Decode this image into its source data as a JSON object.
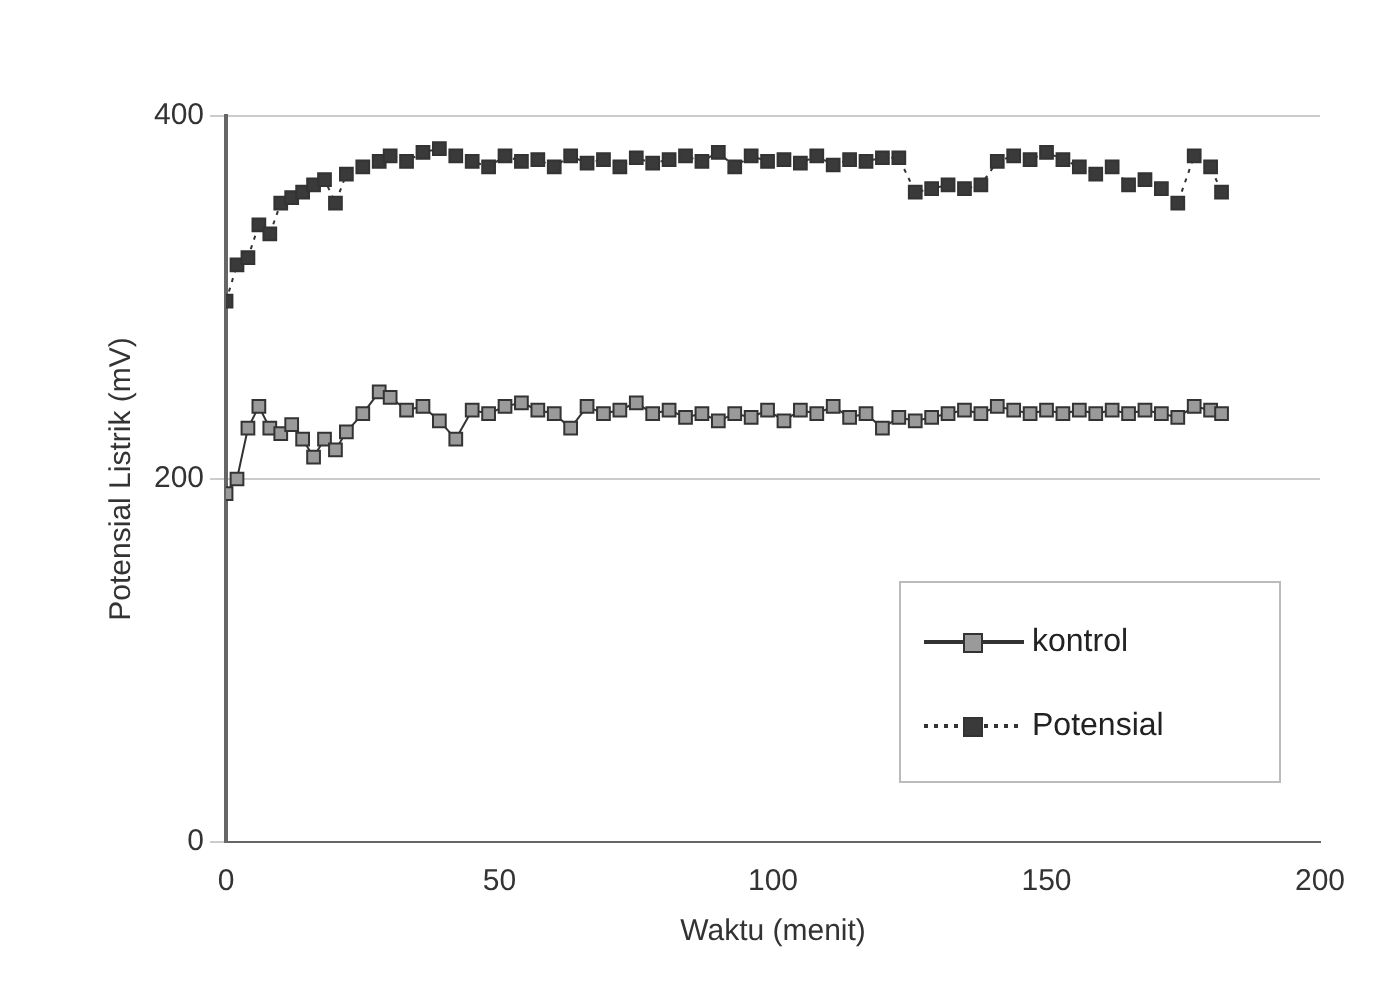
{
  "chart_data": {
    "type": "line",
    "xlabel": "Waktu (menit)",
    "ylabel": "Potensial Listrik (mV)",
    "xlim": [
      0,
      200
    ],
    "xticks": [
      0,
      50,
      100,
      150,
      200
    ],
    "ylim": [
      0,
      400
    ],
    "yticks": [
      0,
      200,
      400
    ],
    "grid": "y",
    "legend": "bottom right",
    "marker": "square",
    "x": [
      0,
      2,
      4,
      6,
      8,
      10,
      12,
      14,
      16,
      18,
      20,
      22,
      25,
      28,
      30,
      33,
      36,
      39,
      42,
      45,
      48,
      51,
      54,
      57,
      60,
      63,
      66,
      69,
      72,
      75,
      78,
      81,
      84,
      87,
      90,
      93,
      96,
      99,
      102,
      105,
      108,
      111,
      114,
      117,
      120,
      123,
      126,
      129,
      132,
      135,
      138,
      141,
      144,
      147,
      150,
      153,
      156,
      159,
      162,
      165,
      168,
      171,
      174,
      177,
      180,
      182
    ],
    "series": [
      {
        "name": "kontrol",
        "color": "#9a9a9a",
        "line_style": "solid",
        "values": [
          192,
          200,
          228,
          240,
          228,
          225,
          230,
          222,
          212,
          222,
          216,
          226,
          236,
          248,
          245,
          238,
          240,
          232,
          222,
          238,
          236,
          240,
          242,
          238,
          236,
          228,
          240,
          236,
          238,
          242,
          236,
          238,
          234,
          236,
          232,
          236,
          234,
          238,
          232,
          238,
          236,
          240,
          234,
          236,
          228,
          234,
          232,
          234,
          236,
          238,
          236,
          240,
          238,
          236,
          238,
          236,
          238,
          236,
          238,
          236,
          238,
          236,
          234,
          240,
          238,
          236
        ]
      },
      {
        "name": "Potensial",
        "color": "#3a3a3a",
        "line_style": "dotted",
        "values": [
          298,
          318,
          322,
          340,
          335,
          352,
          355,
          358,
          362,
          365,
          352,
          368,
          372,
          375,
          378,
          375,
          380,
          382,
          378,
          375,
          372,
          378,
          375,
          376,
          372,
          378,
          374,
          376,
          372,
          377,
          374,
          376,
          378,
          375,
          380,
          372,
          378,
          375,
          376,
          374,
          378,
          373,
          376,
          375,
          377,
          377,
          358,
          360,
          362,
          360,
          362,
          375,
          378,
          376,
          380,
          376,
          372,
          368,
          372,
          362,
          365,
          360,
          352,
          378,
          372,
          358
        ]
      }
    ]
  }
}
